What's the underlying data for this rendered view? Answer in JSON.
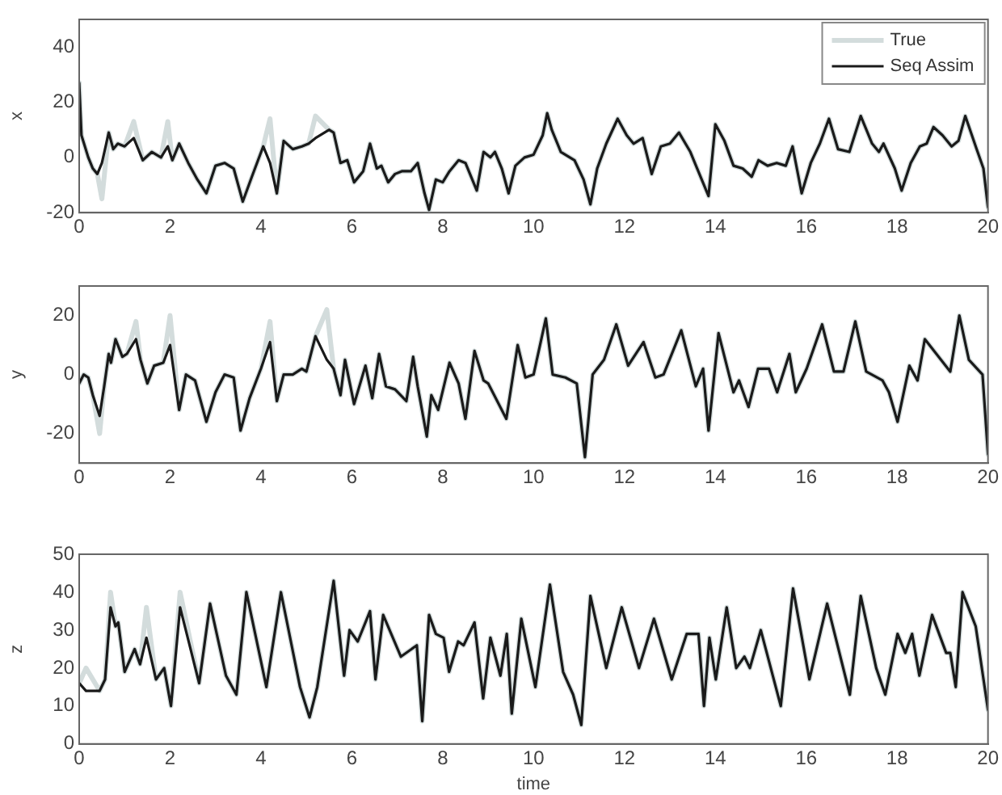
{
  "chart_data": [
    {
      "type": "line",
      "ylabel": "x",
      "xlim": [
        0,
        20
      ],
      "xticks": [
        0,
        2,
        4,
        6,
        8,
        10,
        12,
        14,
        16,
        18,
        20
      ],
      "ylim": [
        -20,
        50
      ],
      "yticks": [
        -20,
        0,
        20,
        40
      ],
      "legend": "top right",
      "x": [
        0,
        0.05,
        0.2,
        0.3,
        0.4,
        0.5,
        0.65,
        0.75,
        0.85,
        1,
        1.2,
        1.4,
        1.6,
        1.8,
        1.95,
        2.05,
        2.2,
        2.4,
        2.6,
        2.8,
        3,
        3.2,
        3.4,
        3.6,
        3.8,
        4.05,
        4.2,
        4.35,
        4.5,
        4.7,
        4.9,
        5.05,
        5.2,
        5.5,
        5.6,
        5.75,
        5.9,
        6.05,
        6.25,
        6.4,
        6.55,
        6.65,
        6.8,
        6.95,
        7.1,
        7.3,
        7.45,
        7.6,
        7.7,
        7.85,
        8,
        8.15,
        8.35,
        8.5,
        8.75,
        8.9,
        9.05,
        9.15,
        9.3,
        9.45,
        9.6,
        9.8,
        10,
        10.2,
        10.3,
        10.4,
        10.6,
        10.9,
        11.1,
        11.25,
        11.4,
        11.6,
        11.85,
        12.05,
        12.2,
        12.4,
        12.6,
        12.8,
        13,
        13.2,
        13.45,
        13.6,
        13.85,
        14,
        14.2,
        14.4,
        14.6,
        14.8,
        14.95,
        15.15,
        15.35,
        15.55,
        15.7,
        15.9,
        16.1,
        16.3,
        16.5,
        16.7,
        16.95,
        17.2,
        17.45,
        17.6,
        17.7,
        17.95,
        18.1,
        18.3,
        18.5,
        18.65,
        18.8,
        19,
        19.2,
        19.35,
        19.5,
        19.75,
        19.9,
        20
      ],
      "series": [
        {
          "name": "True",
          "color": "#d3dcdc",
          "values": [
            27,
            8,
            0,
            -4,
            -6,
            -15,
            9,
            3,
            5,
            4,
            13,
            -1,
            2,
            0,
            13,
            -1,
            5,
            -2,
            -8,
            -13,
            -3,
            -2,
            -4,
            -16,
            -7,
            4,
            14,
            -13,
            6,
            3,
            4,
            5,
            15,
            10,
            9,
            -2,
            -1,
            -9,
            -5,
            5,
            -4,
            -3,
            -9,
            -6,
            -5,
            -5,
            -2,
            -13,
            -19,
            -8,
            -9,
            -5,
            -1,
            -2,
            -12,
            2,
            0,
            2,
            -4,
            -13,
            -3,
            0,
            1,
            8,
            16,
            10,
            2,
            -1,
            -8,
            -17,
            -4,
            5,
            14,
            8,
            5,
            7,
            -6,
            4,
            5,
            9,
            2,
            -4,
            -14,
            12,
            6,
            -3,
            -4,
            -7,
            -1,
            -3,
            -2,
            -3,
            4,
            -13,
            -2,
            5,
            14,
            3,
            2,
            15,
            5,
            2,
            5,
            -4,
            -12,
            -2,
            4,
            5,
            11,
            8,
            4,
            6,
            15,
            3,
            -4,
            -18
          ]
        },
        {
          "name": "Seq Assim",
          "color": "#1a1a1a",
          "values": [
            27,
            8,
            0,
            -4,
            -6,
            -2,
            9,
            3,
            5,
            4,
            7,
            -1,
            2,
            0,
            4,
            -1,
            5,
            -2,
            -8,
            -13,
            -3,
            -2,
            -4,
            -16,
            -7,
            4,
            -2,
            -13,
            6,
            3,
            4,
            5,
            7,
            10,
            9,
            -2,
            -1,
            -9,
            -5,
            5,
            -4,
            -3,
            -9,
            -6,
            -5,
            -5,
            -2,
            -13,
            -19,
            -8,
            -9,
            -5,
            -1,
            -2,
            -12,
            2,
            0,
            2,
            -4,
            -13,
            -3,
            0,
            1,
            8,
            16,
            10,
            2,
            -1,
            -8,
            -17,
            -4,
            5,
            14,
            8,
            5,
            7,
            -6,
            4,
            5,
            9,
            2,
            -4,
            -14,
            12,
            6,
            -3,
            -4,
            -7,
            -1,
            -3,
            -2,
            -3,
            4,
            -13,
            -2,
            5,
            14,
            3,
            2,
            15,
            5,
            2,
            5,
            -4,
            -12,
            -2,
            4,
            5,
            11,
            8,
            4,
            6,
            15,
            3,
            -4,
            -18
          ]
        }
      ]
    },
    {
      "type": "line",
      "ylabel": "y",
      "xlim": [
        0,
        20
      ],
      "xticks": [
        0,
        2,
        4,
        6,
        8,
        10,
        12,
        14,
        16,
        18,
        20
      ],
      "ylim": [
        -30,
        30
      ],
      "yticks": [
        -20,
        0,
        20
      ],
      "x": [
        0,
        0.1,
        0.2,
        0.3,
        0.45,
        0.55,
        0.65,
        0.7,
        0.8,
        0.95,
        1.05,
        1.25,
        1.35,
        1.5,
        1.65,
        1.85,
        2,
        2.2,
        2.35,
        2.55,
        2.8,
        3,
        3.2,
        3.4,
        3.55,
        3.75,
        4,
        4.2,
        4.35,
        4.5,
        4.7,
        4.9,
        5,
        5.2,
        5.45,
        5.6,
        5.75,
        5.85,
        6.05,
        6.3,
        6.45,
        6.6,
        6.75,
        6.95,
        7.2,
        7.35,
        7.45,
        7.65,
        7.75,
        7.9,
        8.15,
        8.35,
        8.5,
        8.7,
        8.9,
        9,
        9.4,
        9.65,
        9.82,
        10,
        10.27,
        10.42,
        10.7,
        10.95,
        11.13,
        11.3,
        11.55,
        11.82,
        12.08,
        12.42,
        12.68,
        12.86,
        13.25,
        13.57,
        13.73,
        13.85,
        14.07,
        14.4,
        14.52,
        14.73,
        14.94,
        15.18,
        15.36,
        15.63,
        15.77,
        16.01,
        16.35,
        16.61,
        16.82,
        17.08,
        17.32,
        17.68,
        17.82,
        18.01,
        18.27,
        18.45,
        18.61,
        19.17,
        19.37,
        19.58,
        19.88,
        20
      ],
      "series": [
        {
          "color": "#d3dcdc",
          "values": [
            -3,
            0,
            -1,
            -7,
            -20,
            -4,
            7,
            4,
            12,
            6,
            7,
            18,
            5,
            -3,
            3,
            4,
            20,
            -12,
            0,
            -2,
            -16,
            -6,
            0,
            -1,
            -19,
            -8,
            2,
            18,
            -9,
            0,
            0,
            2,
            1,
            13,
            22,
            2,
            -7,
            5,
            -10,
            3,
            -8,
            7,
            -4,
            -5,
            -9,
            6,
            -4,
            -21,
            -7,
            -12,
            4,
            -3,
            -15,
            8,
            -2,
            -3,
            -15,
            10,
            -1,
            0,
            19,
            0,
            -1,
            -3,
            -28,
            0,
            5,
            17,
            3,
            11,
            -1,
            0,
            15,
            -4,
            2,
            -19,
            14,
            -6,
            -2,
            -11,
            2,
            2,
            -6,
            7,
            -6,
            2,
            17,
            1,
            1,
            18,
            1,
            -2,
            -6,
            -16,
            3,
            -2,
            12,
            1,
            20,
            5,
            0,
            -27
          ]
        },
        {
          "color": "#1a1a1a",
          "values": [
            -3,
            0,
            -1,
            -7,
            -14,
            -4,
            7,
            4,
            12,
            6,
            7,
            12,
            5,
            -3,
            3,
            4,
            10,
            -12,
            0,
            -2,
            -16,
            -6,
            0,
            -1,
            -19,
            -8,
            2,
            11,
            -9,
            0,
            0,
            2,
            1,
            13,
            5,
            2,
            -7,
            5,
            -10,
            3,
            -8,
            7,
            -4,
            -5,
            -9,
            6,
            -4,
            -21,
            -7,
            -12,
            4,
            -3,
            -15,
            8,
            -2,
            -3,
            -15,
            10,
            -1,
            0,
            19,
            0,
            -1,
            -3,
            -28,
            0,
            5,
            17,
            3,
            11,
            -1,
            0,
            15,
            -4,
            2,
            -19,
            14,
            -6,
            -2,
            -11,
            2,
            2,
            -6,
            7,
            -6,
            2,
            17,
            1,
            1,
            18,
            1,
            -2,
            -6,
            -16,
            3,
            -2,
            12,
            1,
            20,
            5,
            0,
            -27
          ]
        }
      ]
    },
    {
      "type": "line",
      "xlabel": "time",
      "ylabel": "z",
      "xlim": [
        0,
        20
      ],
      "xticks": [
        0,
        2,
        4,
        6,
        8,
        10,
        12,
        14,
        16,
        18,
        20
      ],
      "ylim": [
        0,
        50
      ],
      "yticks": [
        0,
        10,
        20,
        30,
        40,
        50
      ],
      "x": [
        0,
        0.15,
        0.45,
        0.57,
        0.69,
        0.8,
        0.86,
        1,
        1.22,
        1.34,
        1.48,
        1.69,
        1.87,
        2.02,
        2.22,
        2.64,
        2.88,
        3.23,
        3.46,
        3.68,
        4.12,
        4.44,
        4.86,
        5.07,
        5.24,
        5.6,
        5.83,
        5.95,
        6.13,
        6.4,
        6.52,
        6.69,
        7.08,
        7.43,
        7.55,
        7.7,
        7.85,
        8.02,
        8.14,
        8.34,
        8.46,
        8.7,
        8.89,
        9.05,
        9.27,
        9.41,
        9.52,
        9.73,
        10.04,
        10.36,
        10.65,
        10.87,
        11.05,
        11.25,
        11.6,
        11.94,
        12.32,
        12.65,
        13.04,
        13.37,
        13.63,
        13.75,
        13.87,
        14.01,
        14.25,
        14.46,
        14.64,
        14.76,
        15,
        15.44,
        15.71,
        16.07,
        16.46,
        16.96,
        17.2,
        17.54,
        17.74,
        18.01,
        18.18,
        18.33,
        18.49,
        18.77,
        19.08,
        19.17,
        19.29,
        19.44,
        19.73,
        20
      ],
      "series": [
        {
          "color": "#d3dcdc",
          "values": [
            16,
            20,
            14,
            17,
            40,
            31,
            32,
            19,
            25,
            21,
            36,
            17,
            20,
            10,
            40,
            16,
            37,
            18,
            13,
            40,
            15,
            40,
            15,
            7,
            15,
            43,
            18,
            30,
            27,
            35,
            17,
            34,
            23,
            26,
            6,
            34,
            29,
            28,
            19,
            27,
            26,
            32,
            12,
            28,
            18,
            29,
            8,
            33,
            15,
            42,
            19,
            13,
            5,
            39,
            20,
            36,
            20,
            33,
            17,
            29,
            29,
            10,
            28,
            17,
            36,
            20,
            23,
            20,
            30,
            10,
            41,
            17,
            37,
            13,
            39,
            20,
            13,
            29,
            24,
            29,
            18,
            34,
            24,
            24,
            15,
            40,
            31,
            9
          ]
        },
        {
          "color": "#1a1a1a",
          "values": [
            16,
            14,
            14,
            17,
            36,
            31,
            32,
            19,
            25,
            21,
            28,
            17,
            20,
            10,
            36,
            16,
            37,
            18,
            13,
            40,
            15,
            40,
            15,
            7,
            15,
            43,
            18,
            30,
            27,
            35,
            17,
            34,
            23,
            26,
            6,
            34,
            29,
            28,
            19,
            27,
            26,
            32,
            12,
            28,
            18,
            29,
            8,
            33,
            15,
            42,
            19,
            13,
            5,
            39,
            20,
            36,
            20,
            33,
            17,
            29,
            29,
            10,
            28,
            17,
            36,
            20,
            23,
            20,
            30,
            10,
            41,
            17,
            37,
            13,
            39,
            20,
            13,
            29,
            24,
            29,
            18,
            34,
            24,
            24,
            15,
            40,
            31,
            9
          ]
        }
      ]
    }
  ]
}
